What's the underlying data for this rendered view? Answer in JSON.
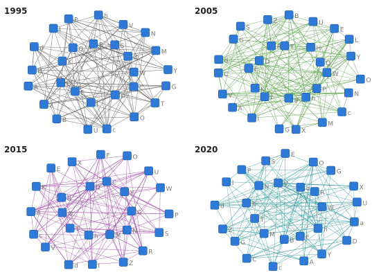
{
  "panels": [
    {
      "title": "1995",
      "edge_color": "#5a5a5a",
      "nodes": [
        "h",
        "V",
        "N",
        "M",
        "Y",
        "G",
        "T",
        "O",
        "c",
        "U",
        "B",
        "X",
        "A",
        "B",
        "d",
        "I",
        "P",
        "W",
        "C",
        "D",
        "L",
        "F",
        "E",
        "K",
        "Q",
        "R",
        "S",
        "Z"
      ]
    },
    {
      "title": "2005",
      "edge_color": "#5aa04a",
      "nodes": [
        "B",
        "U",
        "E",
        "L",
        "Y",
        "O",
        "N",
        "c",
        "M",
        "X",
        "G",
        "I",
        "A",
        "V",
        "C",
        "d",
        "G",
        "S",
        "Z",
        "W",
        "P",
        "h",
        "g",
        "f",
        "K",
        "F",
        "D",
        "R",
        "T",
        "H",
        "Q"
      ]
    },
    {
      "title": "2015",
      "edge_color": "#a04aa8",
      "nodes": [
        "F",
        "O",
        "U",
        "W",
        "P",
        "S",
        "R",
        "Z",
        "I",
        "d",
        "V",
        "c",
        "A",
        "K",
        "E",
        "X",
        "G",
        "N",
        "M",
        "h",
        "T",
        "Q",
        "B",
        "D",
        "C",
        "Y"
      ]
    },
    {
      "title": "2020",
      "edge_color": "#3a9a9e",
      "nodes": [
        "E",
        "O",
        "G",
        "X",
        "U",
        "a",
        "D",
        "Y",
        "A",
        "c",
        "C",
        "G",
        "Z",
        "d",
        "I",
        "P",
        "S",
        "W",
        "h",
        "F",
        "B",
        "M",
        "T",
        "K",
        "N",
        "V",
        "b",
        "R"
      ]
    }
  ]
}
